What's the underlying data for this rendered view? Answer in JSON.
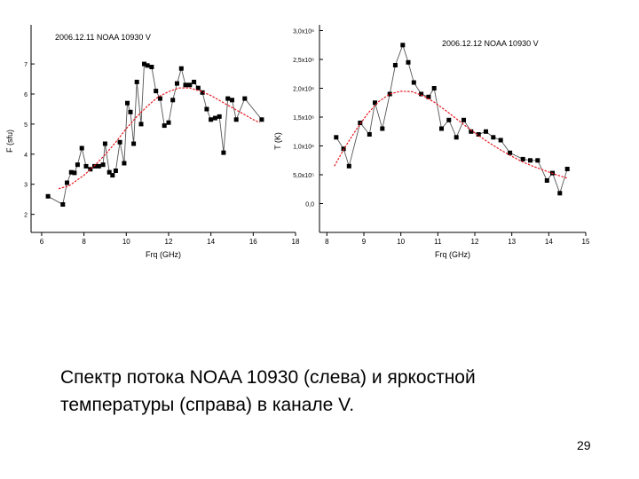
{
  "chart_data": [
    {
      "type": "scatter",
      "title": "2006.12.11 NOAA 10930 V",
      "xlabel": "Frq (GHz)",
      "ylabel": "F (sfu)",
      "xlim": [
        5.5,
        18
      ],
      "ylim": [
        1.4,
        8.3
      ],
      "x_ticks": [
        6,
        8,
        10,
        12,
        14,
        16,
        18
      ],
      "y_ticks": [
        2,
        3,
        4,
        5,
        6,
        7
      ],
      "y_tick_labels": [
        "2",
        "3",
        "4",
        "5",
        "6",
        "7"
      ],
      "grid": false,
      "series": [
        {
          "style": "black squares connected by gray line",
          "color": "#000000",
          "x": [
            6.3,
            7.0,
            7.2,
            7.4,
            7.55,
            7.7,
            7.9,
            8.1,
            8.3,
            8.5,
            8.7,
            8.9,
            9.0,
            9.2,
            9.35,
            9.5,
            9.7,
            9.9,
            10.05,
            10.2,
            10.35,
            10.5,
            10.7,
            10.85,
            11.0,
            11.2,
            11.4,
            11.6,
            11.8,
            12.0,
            12.2,
            12.4,
            12.6,
            12.8,
            13.0,
            13.2,
            13.4,
            13.6,
            13.8,
            14.0,
            14.2,
            14.4,
            14.6,
            14.8,
            15.0,
            15.2,
            15.6,
            16.4
          ],
          "y": [
            2.6,
            2.33,
            3.05,
            3.4,
            3.38,
            3.65,
            4.2,
            3.6,
            3.5,
            3.6,
            3.6,
            3.65,
            4.35,
            3.4,
            3.3,
            3.45,
            4.4,
            3.7,
            5.7,
            5.4,
            4.35,
            6.4,
            5.0,
            7.0,
            6.95,
            6.9,
            6.1,
            5.85,
            4.95,
            5.05,
            5.8,
            6.35,
            6.85,
            6.3,
            6.3,
            6.4,
            6.2,
            6.05,
            5.5,
            5.15,
            5.2,
            5.25,
            4.05,
            5.85,
            5.8,
            5.15,
            5.85,
            5.15
          ]
        },
        {
          "style": "red fitted curve",
          "color": "#e8171f",
          "x": [
            6.8,
            7.3,
            8.0,
            8.5,
            9.0,
            9.5,
            10.0,
            10.5,
            11.0,
            11.5,
            12.0,
            12.5,
            13.0,
            13.5,
            14.0,
            14.5,
            15.0,
            15.5,
            16.0,
            16.3
          ],
          "y": [
            2.85,
            2.95,
            3.3,
            3.62,
            3.98,
            4.4,
            4.85,
            5.25,
            5.6,
            5.9,
            6.08,
            6.2,
            6.2,
            6.1,
            5.95,
            5.75,
            5.55,
            5.35,
            5.15,
            5.05
          ]
        }
      ]
    },
    {
      "type": "scatter",
      "title": "2006.12.12 NOAA 10930 V",
      "xlabel": "Frq (GHz)",
      "ylabel": "T (K)",
      "xlim": [
        7.8,
        15
      ],
      "ylim": [
        -500000.0,
        3100000.0
      ],
      "x_ticks": [
        8,
        9,
        10,
        11,
        12,
        13,
        14,
        15
      ],
      "y_ticks": [
        0,
        500000,
        1000000,
        1500000,
        2000000,
        2500000,
        3000000
      ],
      "y_tick_labels": [
        "0,0",
        "5,0x10⁵",
        "1,0x10⁶",
        "1,5x10⁶",
        "2,0x10⁶",
        "2,5x10⁶",
        "3,0x10⁶"
      ],
      "grid": false,
      "series": [
        {
          "style": "black squares connected by gray line",
          "color": "#000000",
          "x": [
            8.25,
            8.45,
            8.6,
            8.9,
            9.15,
            9.3,
            9.5,
            9.7,
            9.85,
            10.05,
            10.2,
            10.35,
            10.55,
            10.75,
            10.9,
            11.1,
            11.3,
            11.5,
            11.7,
            11.9,
            12.1,
            12.3,
            12.5,
            12.7,
            12.95,
            13.3,
            13.5,
            13.7,
            13.95,
            14.1,
            14.3,
            14.5
          ],
          "y": [
            1150000,
            950000,
            650000,
            1400000,
            1200000,
            1750000,
            1300000,
            1900000,
            2400000,
            2750000,
            2450000,
            2100000,
            1900000,
            1850000,
            2000000,
            1300000,
            1450000,
            1150000,
            1450000,
            1250000,
            1200000,
            1250000,
            1150000,
            1100000,
            880000,
            770000,
            750000,
            750000,
            400000,
            530000,
            180000,
            600000
          ]
        },
        {
          "style": "red fitted curve",
          "color": "#e8171f",
          "x": [
            8.2,
            8.5,
            8.8,
            9.1,
            9.4,
            9.7,
            10.0,
            10.3,
            10.6,
            10.9,
            11.2,
            11.5,
            11.8,
            12.1,
            12.4,
            12.7,
            13.0,
            13.3,
            13.6,
            13.9,
            14.2,
            14.5
          ],
          "y": [
            650000,
            990000,
            1290000,
            1560000,
            1770000,
            1900000,
            1950000,
            1940000,
            1870000,
            1760000,
            1620000,
            1470000,
            1320000,
            1180000,
            1050000,
            930000,
            820000,
            720000,
            640000,
            570000,
            500000,
            440000
          ]
        }
      ]
    }
  ],
  "caption": {
    "line1": "Спектр потока NOAA 10930 (слева) и яркостной",
    "line2": "температуры (справа) в канале  V."
  },
  "page_number": "29"
}
